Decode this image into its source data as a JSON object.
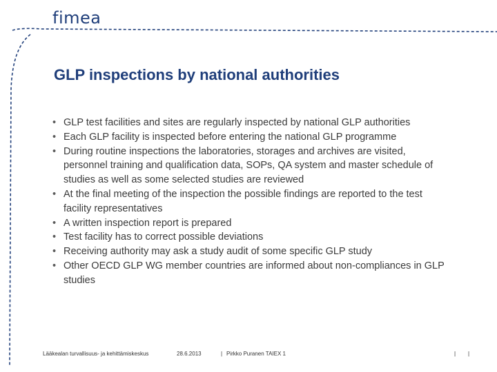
{
  "logo": "fimea",
  "title": "GLP inspections by national authorities",
  "bullets": [
    "GLP test facilities and sites are regularly inspected by national GLP authorities",
    "Each GLP facility is inspected before entering the national GLP programme",
    "During routine inspections the laboratories, storages and archives are visited, personnel training and qualification data, SOPs, QA system and master schedule of studies as well as some selected studies are reviewed",
    "At the final meeting of the inspection the possible findings are reported to the test facility representatives",
    "A written inspection report is prepared",
    "Test facility has to correct possible deviations",
    "Receiving authority may ask a study audit of some specific GLP study",
    "Other OECD GLP WG member countries are informed about non-compliances in GLP studies"
  ],
  "bullet_symbol": "•",
  "footer": {
    "organization": "Lääkealan turvallisuus- ja kehittämiskeskus",
    "date": "28.6.2013",
    "separator": "|",
    "author": "Pirkko Puranen TAIEX 1"
  },
  "colors": {
    "title": "#1f3e7a",
    "logo": "#1f3e7a",
    "decoration": "#1f3e7a",
    "body_text": "#3a3a3a"
  }
}
